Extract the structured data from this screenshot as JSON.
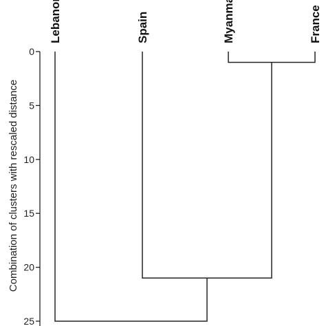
{
  "chart_data": {
    "type": "dendrogram",
    "ylabel": "Combination of clusters with rescaled distance",
    "ylim": [
      0,
      25
    ],
    "yticks": [
      0,
      5,
      10,
      15,
      20,
      25
    ],
    "leaves": [
      "Lebanon",
      "Spain",
      "Myanmar",
      "France"
    ],
    "merges": [
      {
        "left": "Myanmar",
        "right": "France",
        "height": 1
      },
      {
        "left": "Spain",
        "right": "Myanmar+France",
        "height": 21
      },
      {
        "left": "Lebanon",
        "right": "Spain+Myanmar+France",
        "height": 25
      }
    ],
    "colors": {
      "line": "#222222",
      "text": "#111111"
    }
  }
}
